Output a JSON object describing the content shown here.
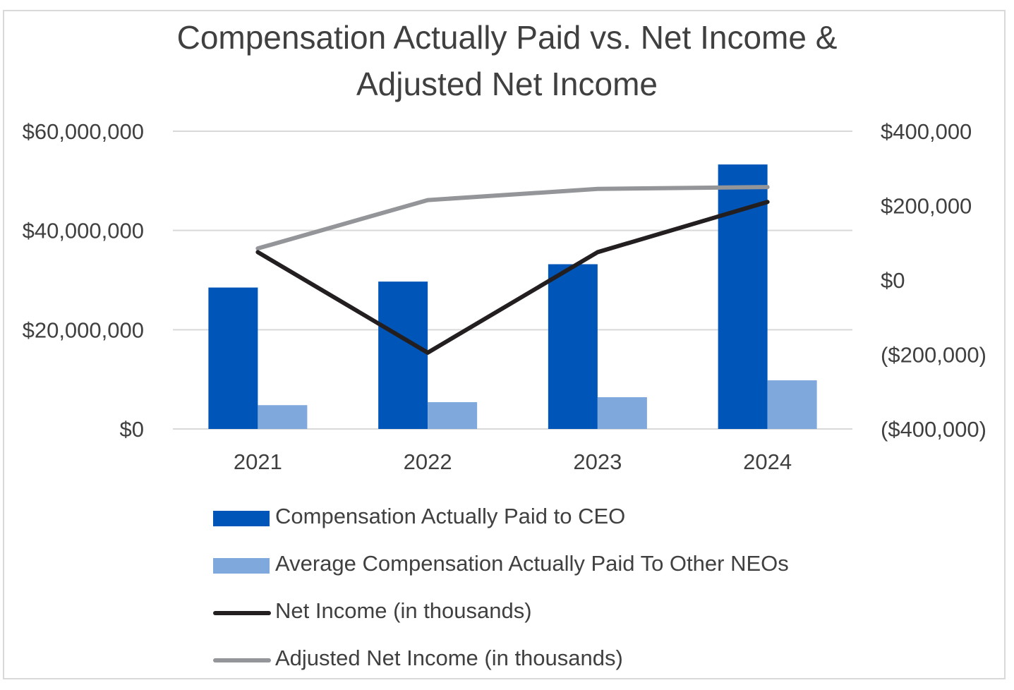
{
  "chart_data": {
    "type": "bar",
    "title": "Compensation Actually Paid vs. Net Income & Adjusted Net Income",
    "title_lines": [
      "Compensation Actually Paid vs. Net Income &",
      "Adjusted Net Income"
    ],
    "categories": [
      "2021",
      "2022",
      "2023",
      "2024"
    ],
    "y_left": {
      "ylim": [
        0,
        60000000
      ],
      "ticks": [
        0,
        20000000,
        40000000,
        60000000
      ],
      "tick_labels": [
        "$0",
        "$20,000,000",
        "$40,000,000",
        "$60,000,000"
      ]
    },
    "y_right": {
      "ylim": [
        -400000,
        400000
      ],
      "ticks": [
        -400000,
        -200000,
        0,
        200000,
        400000
      ],
      "tick_labels": [
        "($400,000)",
        "($200,000)",
        "$0",
        "$200,000",
        "$400,000"
      ]
    },
    "series": [
      {
        "name": "Compensation Actually Paid to CEO",
        "kind": "bar",
        "axis": "left",
        "color": "#0056b8",
        "values": [
          28500000,
          29700000,
          33200000,
          53300000
        ]
      },
      {
        "name": "Average Compensation Actually Paid To Other NEOs",
        "kind": "bar",
        "axis": "left",
        "color": "#7fa8dc",
        "values": [
          4800000,
          5400000,
          6400000,
          9800000
        ]
      },
      {
        "name": "Net Income (in thousands)",
        "kind": "line",
        "axis": "right",
        "color": "#231f20",
        "values": [
          75000,
          -195000,
          75000,
          210000
        ]
      },
      {
        "name": "Adjusted Net Income (in thousands)",
        "kind": "line",
        "axis": "right",
        "color": "#939598",
        "values": [
          85000,
          215000,
          245000,
          250000
        ]
      }
    ],
    "grid": true,
    "legend_position": "bottom",
    "colors": {
      "gridline": "#d9d9d9",
      "text": "#404040",
      "frame": "#d9d9d9"
    }
  }
}
